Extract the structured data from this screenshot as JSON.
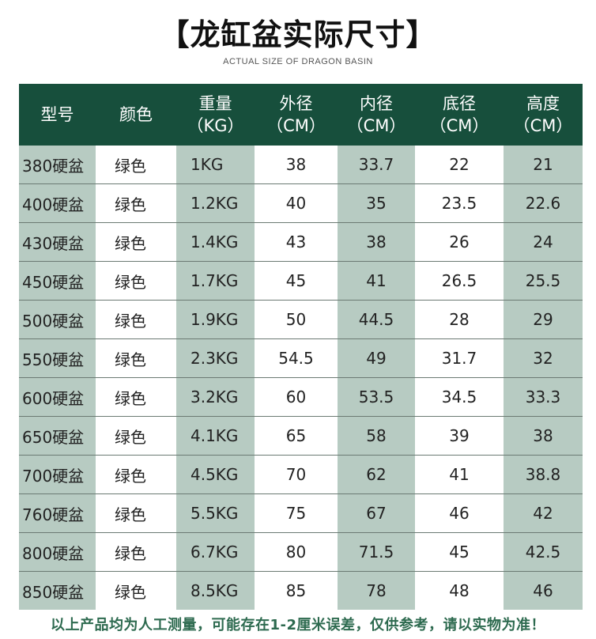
{
  "title": "【龙缸盆实际尺寸】",
  "subtitle": "ACTUAL SIZE OF DRAGON BASIN",
  "table": {
    "headers": [
      {
        "line1": "型号",
        "line2": ""
      },
      {
        "line1": "颜色",
        "line2": ""
      },
      {
        "line1": "重量",
        "line2": "（KG）"
      },
      {
        "line1": "外径",
        "line2": "（CM）"
      },
      {
        "line1": "内径",
        "line2": "（CM）"
      },
      {
        "line1": "底径",
        "line2": "（CM）"
      },
      {
        "line1": "高度",
        "line2": "（CM）"
      }
    ],
    "rows": [
      [
        "380硬盆",
        "绿色",
        "1KG",
        "38",
        "33.7",
        "22",
        "21"
      ],
      [
        "400硬盆",
        "绿色",
        "1.2KG",
        "40",
        "35",
        "23.5",
        "22.6"
      ],
      [
        "430硬盆",
        "绿色",
        "1.4KG",
        "43",
        "38",
        "26",
        "24"
      ],
      [
        "450硬盆",
        "绿色",
        "1.7KG",
        "45",
        "41",
        "26.5",
        "25.5"
      ],
      [
        "500硬盆",
        "绿色",
        "1.9KG",
        "50",
        "44.5",
        "28",
        "29"
      ],
      [
        "550硬盆",
        "绿色",
        "2.3KG",
        "54.5",
        "49",
        "31.7",
        "32"
      ],
      [
        "600硬盆",
        "绿色",
        "3.2KG",
        "60",
        "53.5",
        "34.5",
        "33.3"
      ],
      [
        "650硬盆",
        "绿色",
        "4.1KG",
        "65",
        "58",
        "39",
        "38"
      ],
      [
        "700硬盆",
        "绿色",
        "4.5KG",
        "70",
        "62",
        "41",
        "38.8"
      ],
      [
        "760硬盆",
        "绿色",
        "5.5KG",
        "75",
        "67",
        "46",
        "42"
      ],
      [
        "800硬盆",
        "绿色",
        "6.7KG",
        "80",
        "71.5",
        "45",
        "42.5"
      ],
      [
        "850硬盆",
        "绿色",
        "8.5KG",
        "85",
        "78",
        "48",
        "46"
      ]
    ]
  },
  "note": "以上产品均为人工测量，可能存在1-2厘米误差，仅供参考，请以实物为准！",
  "colors": {
    "header_bg": "#174f3c",
    "shade_bg": "#b7cbc2",
    "note_text": "#2d6a4f"
  }
}
